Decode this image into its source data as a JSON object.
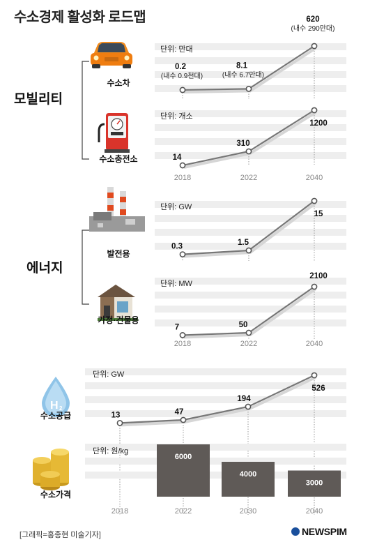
{
  "title": "수소경제 활성화 로드맵",
  "credit": "[그래픽=홍종현 미술기자]",
  "brand": "NEWSPIM",
  "categories": {
    "mobility": "모빌리티",
    "energy": "에너지"
  },
  "colors": {
    "band": "#eeeeee",
    "line": "#777777",
    "bar": "#5f5a57",
    "tick": "#888888"
  },
  "chart_data": [
    {
      "id": "car",
      "type": "line",
      "caption": "수소차",
      "icon": "car-icon",
      "unit": "단위: 만대",
      "x": [
        "2018",
        "2022",
        "2040"
      ],
      "y": [
        0.2,
        8.1,
        620
      ],
      "value_labels": [
        "0.2",
        "8.1",
        "620"
      ],
      "sub_labels": [
        "(내수 0.9천대)",
        "(내수 6.7만대)",
        "(내수 290만대)"
      ]
    },
    {
      "id": "station",
      "type": "line",
      "caption": "수소충전소",
      "icon": "fuel-station-icon",
      "unit": "단위: 개소",
      "x": [
        "2018",
        "2022",
        "2040"
      ],
      "y": [
        14,
        310,
        1200
      ],
      "value_labels": [
        "14",
        "310",
        "1200"
      ]
    },
    {
      "id": "power",
      "type": "line",
      "caption": "발전용",
      "icon": "power-plant-icon",
      "unit": "단위: GW",
      "x": [
        "2018",
        "2022",
        "2040"
      ],
      "y": [
        0.3,
        1.5,
        15
      ],
      "value_labels": [
        "0.3",
        "1.5",
        "15"
      ]
    },
    {
      "id": "building",
      "type": "line",
      "caption": "가정·건물용",
      "icon": "house-icon",
      "unit": "단위: MW",
      "x": [
        "2018",
        "2022",
        "2040"
      ],
      "y": [
        7,
        50,
        2100
      ],
      "value_labels": [
        "7",
        "50",
        "2100"
      ]
    },
    {
      "id": "supply",
      "type": "line",
      "caption": "수소공급",
      "icon": "hydrogen-drop-icon",
      "unit": "단위: GW",
      "x": [
        "2018",
        "2022",
        "2030",
        "2040"
      ],
      "y": [
        13,
        47,
        194,
        526
      ],
      "value_labels": [
        "13",
        "47",
        "194",
        "526"
      ]
    },
    {
      "id": "price",
      "type": "bar",
      "caption": "수소가격",
      "icon": "coins-icon",
      "unit": "단위: 원/kg",
      "categories": [
        "2018",
        "2022",
        "2030",
        "2040"
      ],
      "values": [
        null,
        6000,
        4000,
        3000
      ],
      "value_labels": [
        "",
        "6000",
        "4000",
        "3000"
      ]
    }
  ]
}
